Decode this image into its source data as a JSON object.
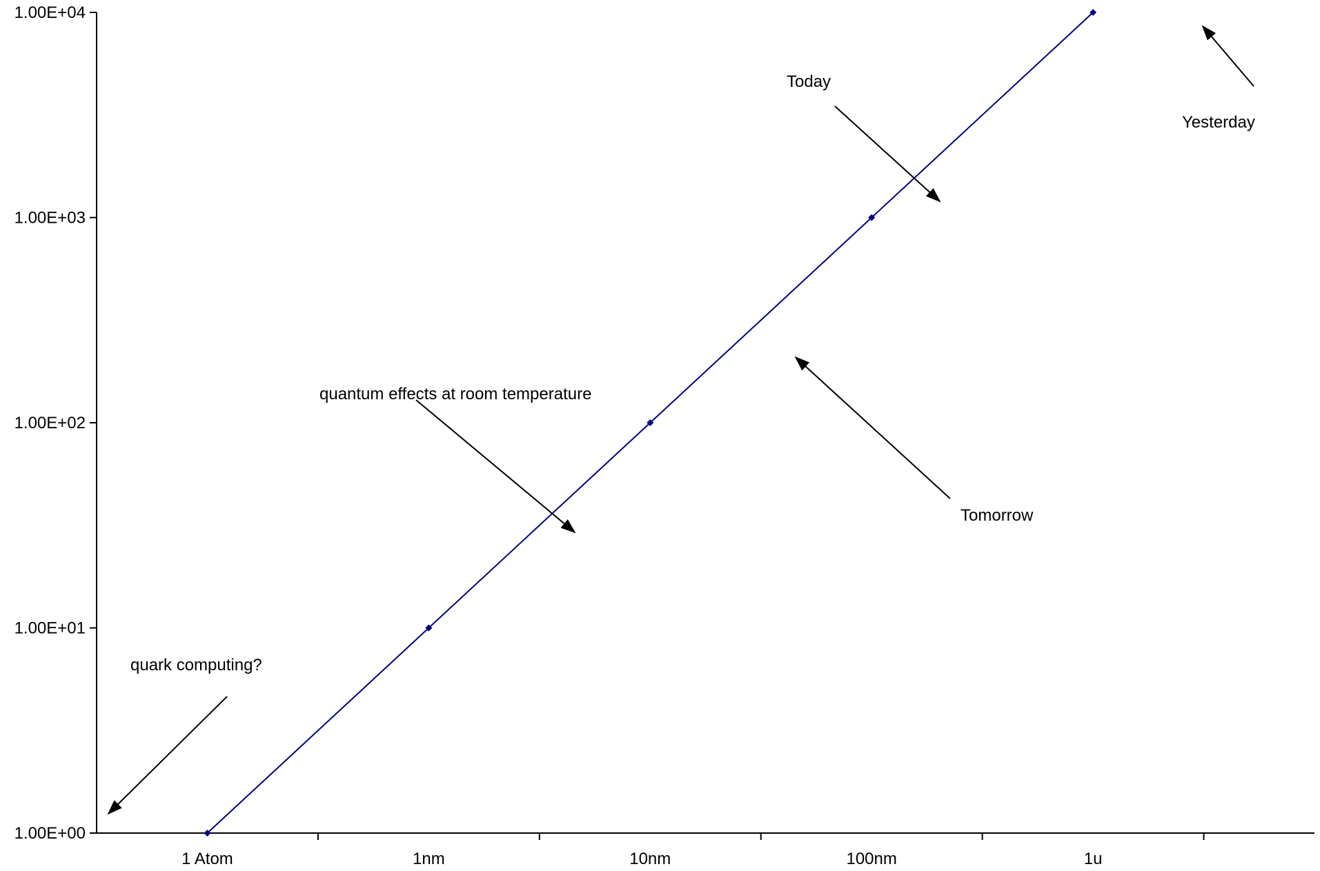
{
  "chart_data": {
    "type": "line",
    "title": "",
    "xlabel": "",
    "ylabel": "",
    "categories": [
      "1 Atom",
      "1nm",
      "10nm",
      "100nm",
      "1u"
    ],
    "series": [
      {
        "values": [
          1,
          10,
          100,
          1000,
          10000
        ],
        "color": "#000080"
      }
    ],
    "y_scale": "log",
    "ylim": [
      1,
      10000
    ],
    "y_ticks": [
      {
        "value": 1,
        "label": "1.00E+00"
      },
      {
        "value": 10,
        "label": "1.00E+01"
      },
      {
        "value": 100,
        "label": "1.00E+02"
      },
      {
        "value": 1000,
        "label": "1.00E+03"
      },
      {
        "value": 10000,
        "label": "1.00E+04"
      }
    ],
    "grid": false,
    "legend": "none",
    "annotations": [
      {
        "text": "Today"
      },
      {
        "text": "Yesterday"
      },
      {
        "text": "quantum effects at room temperature"
      },
      {
        "text": "Tomorrow"
      },
      {
        "text": "quark computing?"
      }
    ]
  }
}
